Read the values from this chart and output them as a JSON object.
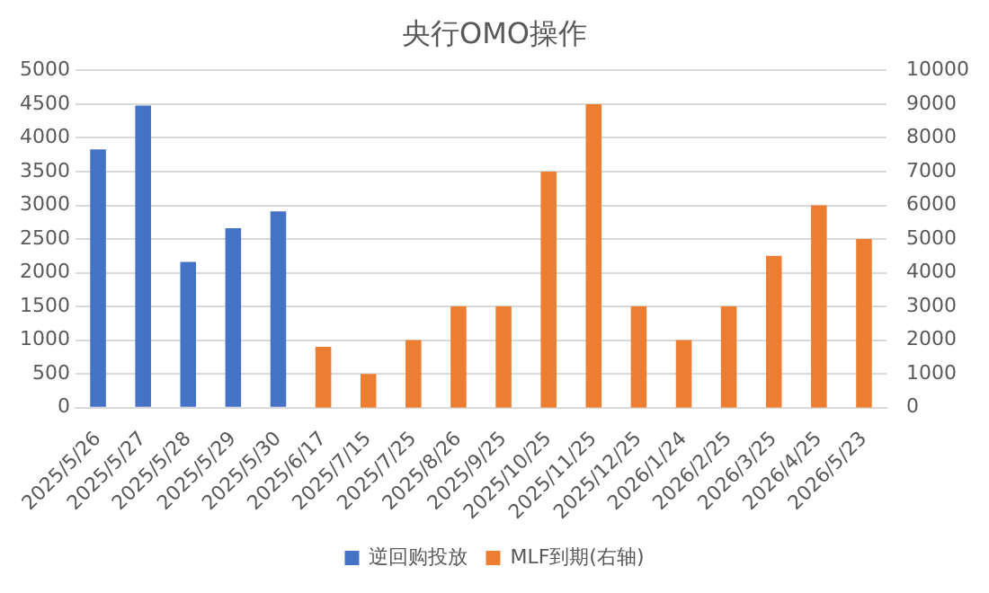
{
  "chart_data": {
    "type": "bar",
    "title": "央行OMO操作",
    "categories": [
      "2025/5/26",
      "2025/5/27",
      "2025/5/28",
      "2025/5/29",
      "2025/5/30",
      "2025/6/17",
      "2025/7/15",
      "2025/7/25",
      "2025/8/26",
      "2025/9/25",
      "2025/10/25",
      "2025/11/25",
      "2025/12/25",
      "2026/1/24",
      "2026/2/25",
      "2026/3/25",
      "2026/4/25",
      "2026/5/23"
    ],
    "series": [
      {
        "name": "逆回购投放",
        "color": "#4472c4",
        "values": [
          3830,
          4480,
          2160,
          2660,
          2910,
          null,
          null,
          null,
          null,
          null,
          null,
          null,
          null,
          null,
          null,
          null,
          null,
          null
        ]
      },
      {
        "name": "MLF到期(右轴)",
        "color": "#ed7d31",
        "axis": "y2",
        "values": [
          null,
          null,
          null,
          null,
          null,
          1800,
          1000,
          2000,
          3000,
          3000,
          7000,
          9000,
          3000,
          2000,
          3000,
          4500,
          6000,
          5000
        ]
      }
    ],
    "ylim": [
      0,
      5000
    ],
    "yticks": [
      0,
      500,
      1000,
      1500,
      2000,
      2500,
      3000,
      3500,
      4000,
      4500,
      5000
    ],
    "y2lim": [
      0,
      10000
    ],
    "y2ticks": [
      0,
      1000,
      2000,
      3000,
      4000,
      5000,
      6000,
      7000,
      8000,
      9000,
      10000
    ],
    "grid": "y",
    "legend": "bottom"
  }
}
